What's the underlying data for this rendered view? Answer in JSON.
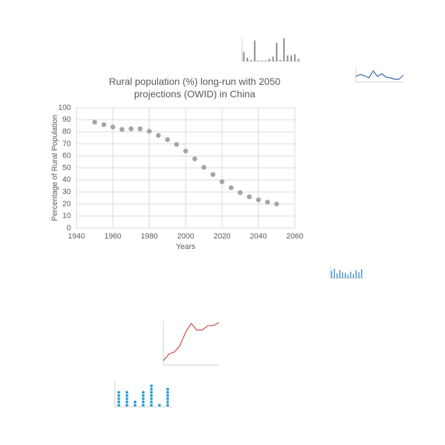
{
  "chart_data": [
    {
      "type": "scatter",
      "title": "Rural population (%) long-run with 2050 projections (OWID) in China",
      "x_label": "Years",
      "y_label": "Percentage of Rural Population",
      "color": "#a5a5a5",
      "grid": true,
      "x": [
        1950,
        1955,
        1960,
        1965,
        1970,
        1975,
        1980,
        1985,
        1990,
        1995,
        2000,
        2005,
        2010,
        2015,
        2020,
        2025,
        2030,
        2035,
        2040,
        2045,
        2050
      ],
      "values": [
        88,
        86,
        84,
        82,
        82.5,
        82.5,
        80.5,
        77,
        73.5,
        69.5,
        64,
        57.5,
        50.5,
        44.5,
        38.5,
        33.5,
        29.5,
        26,
        23.5,
        21.5,
        20
      ],
      "xlim": [
        1940,
        2060
      ],
      "xticks": [
        1940,
        1960,
        1980,
        2000,
        2020,
        2040,
        2060
      ],
      "ylim": [
        0,
        100
      ],
      "yticks": [
        0,
        10,
        20,
        30,
        40,
        50,
        60,
        70,
        80,
        90,
        100
      ]
    },
    {
      "type": "bar",
      "color": "#8c8c8c",
      "ylim": [
        0,
        100
      ],
      "values": [
        40,
        15,
        5,
        90,
        3,
        2,
        3,
        10,
        20,
        80,
        5,
        100,
        25,
        25,
        30,
        10
      ]
    },
    {
      "type": "line",
      "color": "#2e5fa8",
      "ylim": [
        0,
        100
      ],
      "values": [
        40,
        55,
        45,
        30,
        80,
        40,
        60,
        35,
        30,
        20,
        20,
        50
      ]
    },
    {
      "type": "bar",
      "color": "#4a90d0",
      "ylim": [
        0,
        100
      ],
      "values": [
        60,
        80,
        40,
        70,
        50,
        45,
        30,
        55,
        35,
        65,
        50,
        75
      ]
    },
    {
      "type": "line",
      "color": "#d04040",
      "ylim": [
        0,
        100
      ],
      "values": [
        10,
        25,
        30,
        45,
        75,
        95,
        80,
        80,
        90,
        90,
        97
      ]
    },
    {
      "type": "dot",
      "color": "#2a9fd6",
      "ylim": [
        0,
        8
      ],
      "values": [
        5,
        5,
        2,
        5,
        7,
        1,
        6
      ]
    }
  ]
}
